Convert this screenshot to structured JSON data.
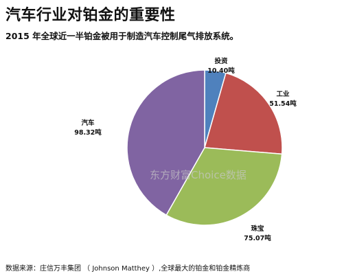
{
  "title": "汽车行业对铂金的重要性",
  "subtitle": "2015 年全球近一半铂金被用于制造汽车控制尾气排放系统。",
  "source": "数据来源：庄信万丰集团 （ Johnson Matthey ）,全球最大的铂金和铂金精炼商",
  "watermark": "东方财富Choice数据",
  "chart_data": {
    "type": "pie",
    "title": "",
    "unit": "吨",
    "slices": [
      {
        "name": "投资",
        "value": 10.4,
        "label": "10.40吨",
        "color": "#4f81bd"
      },
      {
        "name": "工业",
        "value": 51.54,
        "label": "51.54吨",
        "color": "#c0504d"
      },
      {
        "name": "珠宝",
        "value": 75.07,
        "label": "75.07吨",
        "color": "#9bbb59"
      },
      {
        "name": "汽车",
        "value": 98.32,
        "label": "98.32吨",
        "color": "#8064a2"
      }
    ]
  }
}
